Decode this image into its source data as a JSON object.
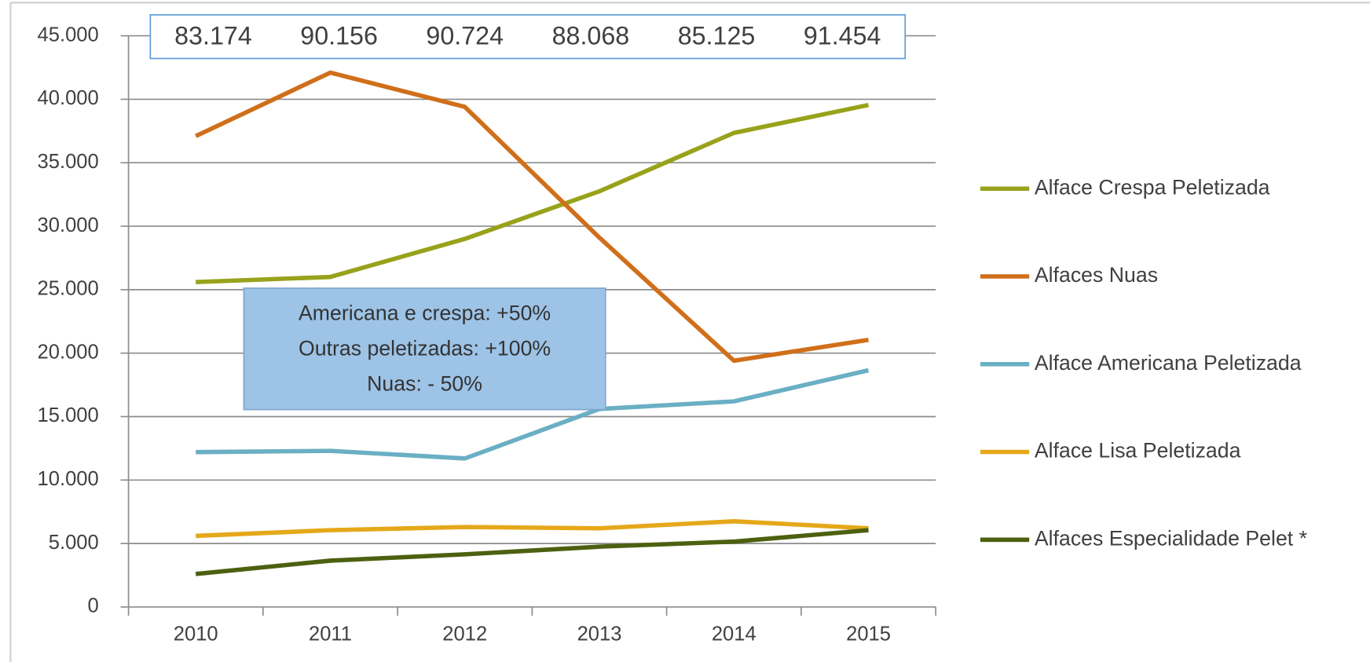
{
  "chart_data": {
    "type": "line",
    "categories": [
      "2010",
      "2011",
      "2012",
      "2013",
      "2014",
      "2015"
    ],
    "series": [
      {
        "name": "Alface Crespa Peletizada",
        "color": "#98a21a",
        "values": [
          25600,
          26000,
          29000,
          32750,
          37350,
          39550
        ]
      },
      {
        "name": "Alfaces Nuas",
        "color": "#d06f1a",
        "values": [
          37100,
          42100,
          39400,
          29100,
          19400,
          21050
        ]
      },
      {
        "name": "Alface Americana Peletizada",
        "color": "#6aafc4",
        "values": [
          12200,
          12300,
          11700,
          15600,
          16200,
          18650
        ]
      },
      {
        "name": "Alface Lisa Peletizada",
        "color": "#e5a81a",
        "values": [
          5600,
          6050,
          6300,
          6200,
          6750,
          6200
        ]
      },
      {
        "name": "Alfaces Especialidade Pelet *",
        "color": "#4d6010",
        "values": [
          2600,
          3650,
          4150,
          4750,
          5150,
          6050
        ]
      }
    ],
    "ylim": [
      0,
      45000
    ],
    "yticks": [
      0,
      {
        "value": 5000,
        "label": "5.000"
      },
      {
        "value": 10000,
        "label": "10.000"
      },
      {
        "value": 15000,
        "label": "15.000"
      },
      {
        "value": 20000,
        "label": "20.000"
      },
      {
        "value": 25000,
        "label": "25.000"
      },
      {
        "value": 30000,
        "label": "30.000"
      },
      {
        "value": 35000,
        "label": "35.000"
      },
      {
        "value": 40000,
        "label": "40.000"
      },
      {
        "value": 45000,
        "label": "45.000"
      }
    ],
    "grid": true,
    "totals": {
      "values": [
        83174,
        90156,
        90724,
        88068,
        85125,
        91454
      ],
      "value_labels": [
        "83.174",
        "90.156",
        "90.724",
        "88.068",
        "85.125",
        "91.454"
      ]
    },
    "annotation": [
      "Americana e crespa:  +50%",
      "Outras peletizadas:  +100%",
      "Nuas: - 50%"
    ]
  }
}
